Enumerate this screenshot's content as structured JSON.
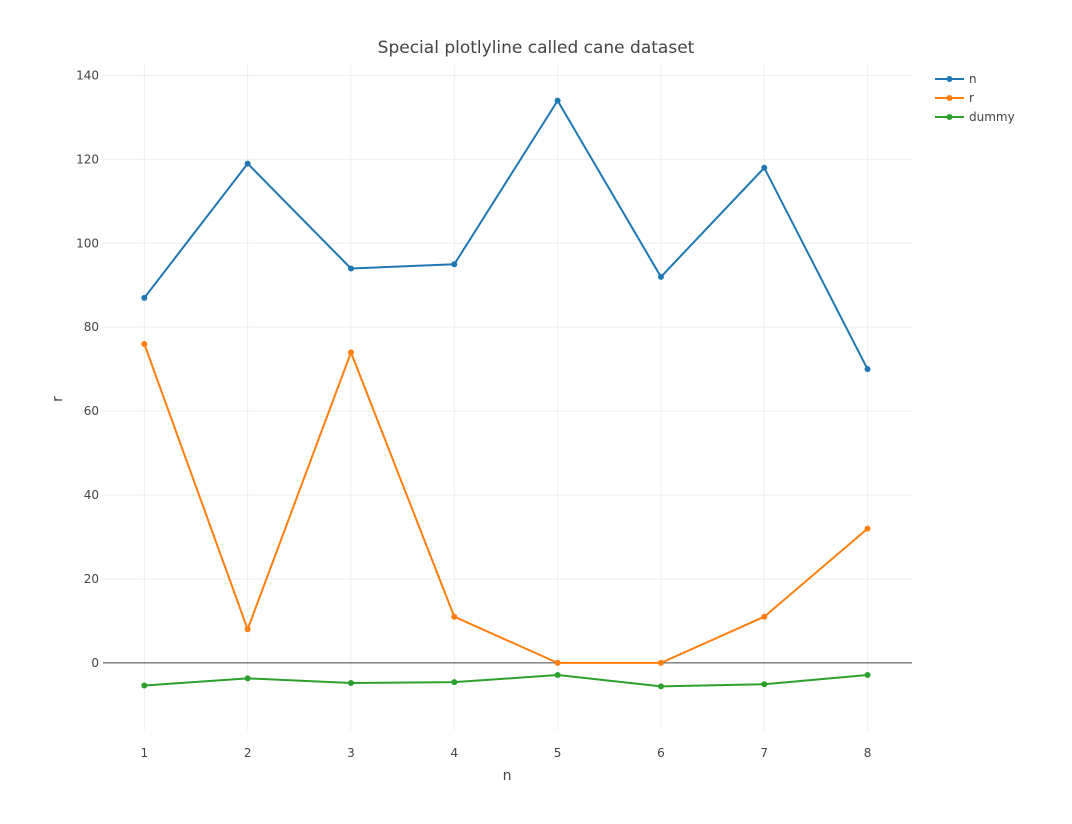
{
  "chart_data": {
    "type": "line",
    "title": "Special plotlyline called cane dataset",
    "xlabel": "n",
    "ylabel": "r",
    "x": [
      1,
      2,
      3,
      4,
      5,
      6,
      7,
      8
    ],
    "xlim": [
      0.6,
      8.43
    ],
    "ylim": [
      -16,
      142.5
    ],
    "yticks": [
      0,
      20,
      40,
      60,
      80,
      100,
      120,
      140
    ],
    "grid": true,
    "legend_position": "top-right",
    "series": [
      {
        "name": "n",
        "color": "#1f77b4",
        "values": [
          87,
          119,
          94,
          95,
          134,
          92,
          118,
          70
        ]
      },
      {
        "name": "r",
        "color": "#ff7f0e",
        "values": [
          76,
          8,
          74,
          11,
          0,
          0,
          11,
          32
        ]
      },
      {
        "name": "dummy",
        "color": "#2ca02c",
        "values": [
          -5.4,
          -3.7,
          -4.8,
          -4.6,
          -2.9,
          -5.6,
          -5.1,
          -2.9
        ]
      }
    ]
  }
}
